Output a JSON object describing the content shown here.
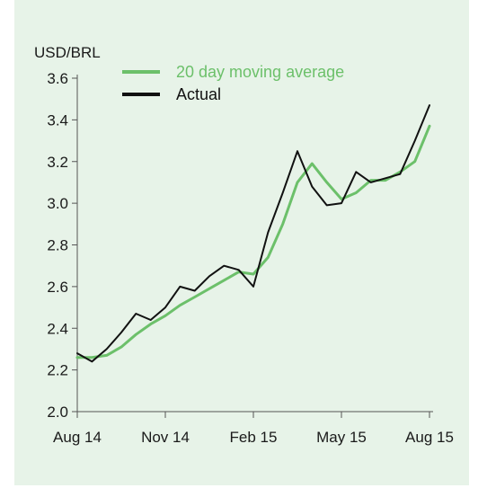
{
  "chart_data": {
    "type": "line",
    "title": "",
    "y_unit_label": "USD/BRL",
    "xlabel": "",
    "ylabel": "",
    "ylim": [
      2.0,
      3.6
    ],
    "yticks": [
      2.0,
      2.2,
      2.4,
      2.6,
      2.8,
      3.0,
      3.2,
      3.4,
      3.6
    ],
    "ytick_labels": [
      "2.0",
      "2.2",
      "2.4",
      "2.6",
      "2.8",
      "3.0",
      "3.2",
      "3.4",
      "3.6"
    ],
    "xticks": [
      "Aug 14",
      "Nov 14",
      "Feb 15",
      "May 15",
      "Aug 15"
    ],
    "grid": false,
    "legend_position": "top-left",
    "x_months": [
      0,
      0.5,
      1,
      1.5,
      2,
      2.5,
      3,
      3.5,
      4,
      4.5,
      5,
      5.5,
      6,
      6.5,
      7,
      7.5,
      8,
      8.5,
      9,
      9.5,
      10,
      10.5,
      11,
      11.5,
      12
    ],
    "series": [
      {
        "name": "20 day moving average",
        "color": "#6cc06a",
        "values": [
          2.26,
          2.26,
          2.27,
          2.31,
          2.37,
          2.42,
          2.46,
          2.51,
          2.55,
          2.59,
          2.63,
          2.67,
          2.66,
          2.74,
          2.9,
          3.1,
          3.19,
          3.1,
          3.02,
          3.05,
          3.11,
          3.11,
          3.15,
          3.2,
          3.37
        ]
      },
      {
        "name": "Actual",
        "color": "#111111",
        "values": [
          2.28,
          2.24,
          2.3,
          2.38,
          2.47,
          2.44,
          2.5,
          2.6,
          2.58,
          2.65,
          2.7,
          2.68,
          2.6,
          2.86,
          3.05,
          3.25,
          3.08,
          2.99,
          3.0,
          3.15,
          3.1,
          3.12,
          3.14,
          3.3,
          3.47
        ]
      }
    ]
  }
}
